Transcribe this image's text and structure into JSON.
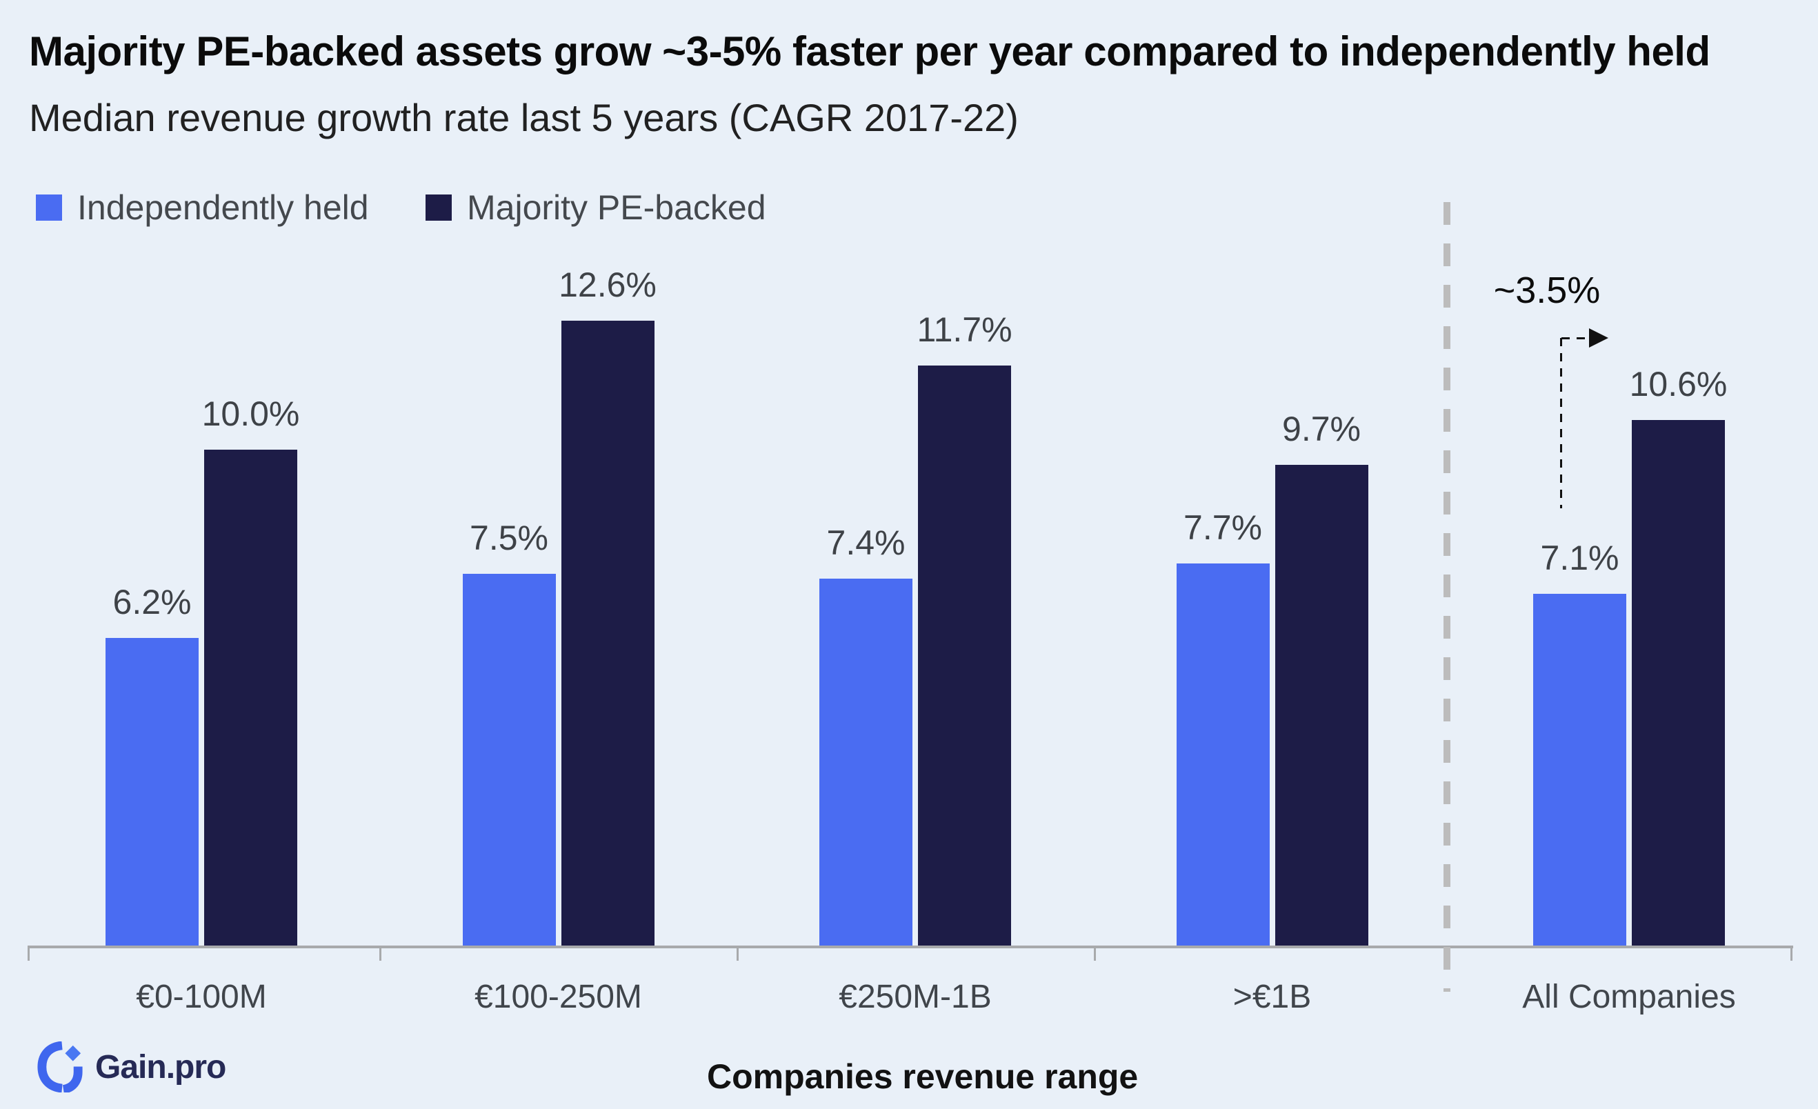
{
  "page": {
    "background": "#e9f0f8"
  },
  "branding": {
    "logo_text": "Gain.pro"
  },
  "chart_data": {
    "type": "bar",
    "title": "Majority PE-backed assets grow ~3-5% faster per year compared to independently held",
    "subtitle": "Median revenue growth rate last 5 years (CAGR 2017-22)",
    "categories": [
      "€0-100M",
      "€100-250M",
      "€250M-1B",
      ">€1B",
      "All Companies"
    ],
    "series": [
      {
        "name": "Independently held",
        "color": "#4a6cf2",
        "values": [
          6.2,
          7.5,
          7.4,
          7.7,
          7.1
        ],
        "labels": [
          "6.2%",
          "7.5%",
          "7.4%",
          "7.7%",
          "7.1%"
        ]
      },
      {
        "name": "Majority PE-backed",
        "color": "#1d1c47",
        "values": [
          10.0,
          12.6,
          11.7,
          9.7,
          10.6
        ],
        "labels": [
          "10.0%",
          "12.6%",
          "11.7%",
          "9.7%",
          "10.6%"
        ]
      }
    ],
    "xlabel": "Companies revenue range",
    "ylabel": "",
    "ylim": [
      0,
      14
    ],
    "grid": false,
    "legend_position": "top-left",
    "annotation": {
      "text": "~3.5%",
      "target_category": "All Companies"
    },
    "separator": {
      "type": "dashed-vertical",
      "before_category": "All Companies"
    }
  }
}
